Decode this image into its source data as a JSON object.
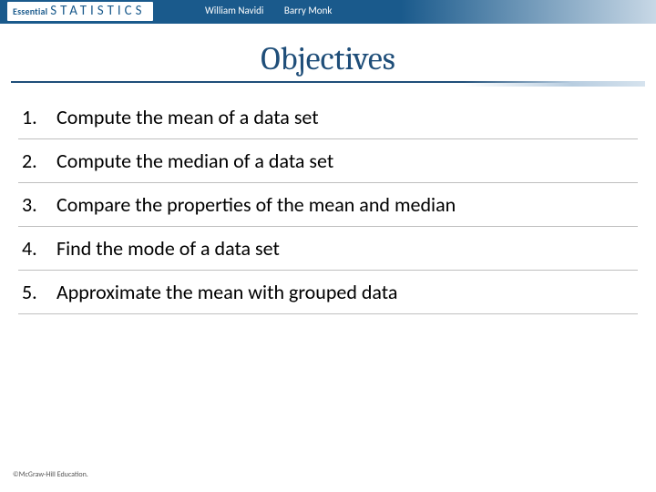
{
  "header": {
    "book_prefix": "Essential",
    "book_main": "STATISTICS",
    "author1": "William Navidi",
    "author2": "Barry Monk",
    "bar_color": "#1a5a8c"
  },
  "title": {
    "text": "Objectives",
    "color": "#1f4e79",
    "fontsize": 36
  },
  "objectives": [
    {
      "num": "1.",
      "text": "Compute the mean of a data set"
    },
    {
      "num": "2.",
      "text": "Compute the median of a data set"
    },
    {
      "num": "3.",
      "text": "Compare the properties of the mean and median"
    },
    {
      "num": "4.",
      "text": "Find the mode of a data set"
    },
    {
      "num": "5.",
      "text": "Approximate the mean with grouped data"
    }
  ],
  "footer": {
    "copyright": "©McGraw-Hill Education."
  },
  "style": {
    "background": "#ffffff",
    "rule_color": "#bfbfbf",
    "body_font": "Calibri",
    "title_font": "Cambria",
    "body_fontsize": 22
  }
}
